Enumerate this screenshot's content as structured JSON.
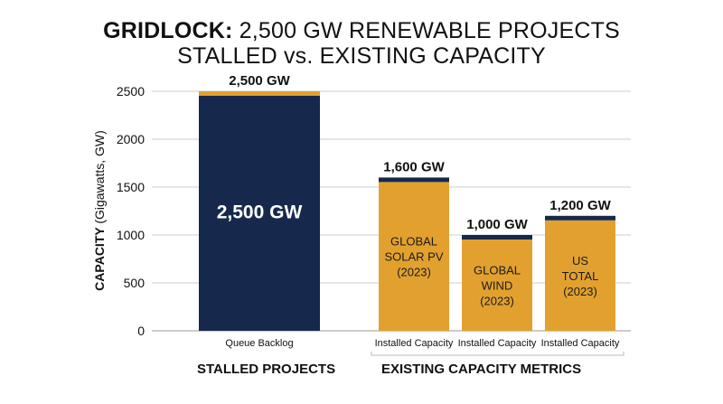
{
  "title": {
    "bold": "GRIDLOCK:",
    "rest": "2,500 GW RENEWABLE PROJECTS",
    "line2": "STALLED vs. EXISTING CAPACITY"
  },
  "colors": {
    "navy": "#16294d",
    "gold": "#e2a12f",
    "grid": "#cccccc",
    "text": "#111111"
  },
  "chart_data": {
    "type": "bar",
    "ylabel_bold": "CAPACITY",
    "ylabel_rest": "(Gigawatts, GW)",
    "ylim": [
      0,
      2500
    ],
    "yticks": [
      0,
      500,
      1000,
      1500,
      2000,
      2500
    ],
    "grid": true,
    "categories": [
      "Queue Backlog",
      "Installed Capacity",
      "Installed Capacity",
      "Installed Capacity"
    ],
    "values": [
      2500,
      1600,
      1000,
      1200
    ],
    "top_labels": [
      "2,500 GW",
      "1,600 GW",
      "1,000 GW",
      "1,200 GW"
    ],
    "bar_inner_labels": [
      [
        "2,500 GW"
      ],
      [
        "GLOBAL",
        "SOLAR PV",
        "(2023)"
      ],
      [
        "GLOBAL",
        "WIND",
        "(2023)"
      ],
      [
        "US",
        "TOTAL",
        "(2023)"
      ]
    ],
    "bar_fill": [
      "navy",
      "gold",
      "gold",
      "gold"
    ],
    "cap_fill": [
      "gold",
      "navy",
      "navy",
      "navy"
    ],
    "groups": [
      "STALLED PROJECTS",
      "EXISTING CAPACITY METRICS"
    ]
  }
}
